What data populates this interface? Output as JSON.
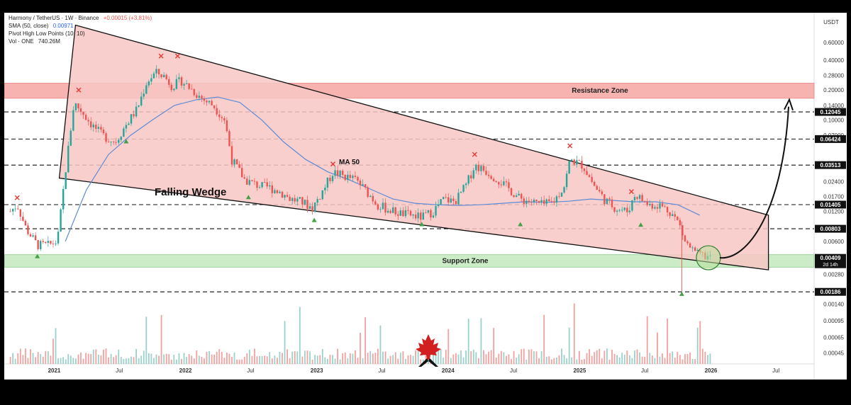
{
  "header": {
    "title": "Harmony / TetherUS · 1W · Binance",
    "change": "+0.00015 (+3.81%)",
    "sma_label": "SMA (50, close)",
    "sma_value": "0.00971",
    "pivot_label": "Pivot High Low Points (10, 10)",
    "vol_label": "Vol · ONE",
    "vol_value": "740.26M"
  },
  "colors": {
    "up": "#26a69a",
    "down": "#ef5350",
    "wedge_fill": "#f7c7c4",
    "resistance_fill": "#f6b3b0",
    "support_fill": "#cbecc6",
    "ma": "#5b8bd6",
    "pivot_high": "#e53935",
    "pivot_low": "#43a047"
  },
  "chart_data": {
    "type": "line",
    "title": "Harmony / TetherUS · 1W · Binance",
    "y_axis_unit": "USDT",
    "y_scale": "log",
    "ylim": [
      0.00035,
      1.2
    ],
    "y_ticks": [
      "1.20000",
      "0.60000",
      "0.40000",
      "0.28000",
      "0.20000",
      "0.14000",
      "0.10000",
      "0.07000",
      "0.03513",
      "0.02400",
      "0.01700",
      "0.01200",
      "0.00803",
      "0.00600",
      "0.00409",
      "0.00280",
      "0.00186",
      "0.00140",
      "0.00095",
      "0.00065",
      "0.00045"
    ],
    "x_ticks": [
      "2021",
      "Jul",
      "2022",
      "Jul",
      "2023",
      "Jul",
      "2024",
      "Jul",
      "2025",
      "Jul",
      "2026",
      "Jul"
    ],
    "xlim": [
      "2020-08-15",
      "2026-10-15"
    ],
    "series": [
      {
        "name": "Harmony / TetherUS",
        "x": [
          "2020-09-01",
          "2020-09-20",
          "2020-10-15",
          "2020-11-15",
          "2020-12-15",
          "2021-01-10",
          "2021-02-01",
          "2021-02-25",
          "2021-03-20",
          "2021-04-15",
          "2021-05-15",
          "2021-06-20",
          "2021-07-20",
          "2021-08-20",
          "2021-09-15",
          "2021-10-10",
          "2021-11-01",
          "2021-11-25",
          "2021-12-20",
          "2022-01-20",
          "2022-02-20",
          "2022-03-20",
          "2022-04-20",
          "2022-05-10",
          "2022-06-15",
          "2022-07-20",
          "2022-08-20",
          "2022-09-20",
          "2022-10-20",
          "2022-11-20",
          "2022-12-20",
          "2023-01-20",
          "2023-02-15",
          "2023-03-20",
          "2023-04-20",
          "2023-05-20",
          "2023-06-20",
          "2023-07-20",
          "2023-08-20",
          "2023-09-20",
          "2023-10-20",
          "2023-11-20",
          "2023-12-20",
          "2024-01-20",
          "2024-02-20",
          "2024-03-15",
          "2024-04-20",
          "2024-05-20",
          "2024-06-20",
          "2024-07-20",
          "2024-08-20",
          "2024-09-20",
          "2024-10-20",
          "2024-11-20",
          "2024-12-05",
          "2025-01-10",
          "2025-02-10",
          "2025-03-10",
          "2025-04-10",
          "2025-05-15",
          "2025-06-05",
          "2025-07-10",
          "2025-08-10",
          "2025-09-10",
          "2025-10-05",
          "2025-10-20",
          "2025-11-20",
          "2025-12-20",
          "2026-01-05"
        ],
        "values": [
          0.012,
          0.014,
          0.008,
          0.0055,
          0.0055,
          0.006,
          0.03,
          0.15,
          0.12,
          0.09,
          0.07,
          0.06,
          0.09,
          0.13,
          0.24,
          0.3,
          0.28,
          0.22,
          0.25,
          0.2,
          0.16,
          0.14,
          0.1,
          0.04,
          0.025,
          0.022,
          0.021,
          0.019,
          0.016,
          0.015,
          0.013,
          0.02,
          0.03,
          0.027,
          0.025,
          0.019,
          0.014,
          0.0125,
          0.0115,
          0.011,
          0.0105,
          0.012,
          0.016,
          0.015,
          0.022,
          0.035,
          0.03,
          0.025,
          0.02,
          0.016,
          0.015,
          0.014,
          0.015,
          0.022,
          0.04,
          0.035,
          0.022,
          0.016,
          0.013,
          0.012,
          0.018,
          0.014,
          0.014,
          0.012,
          0.009,
          0.006,
          0.0045,
          0.0042,
          0.0041
        ]
      },
      {
        "name": "MA 50",
        "x": [
          "2021-02-01",
          "2021-04-01",
          "2021-06-01",
          "2021-08-01",
          "2021-10-01",
          "2021-12-01",
          "2022-02-01",
          "2022-04-01",
          "2022-06-01",
          "2022-08-01",
          "2022-10-01",
          "2022-12-01",
          "2023-02-01",
          "2023-04-01",
          "2023-06-01",
          "2023-08-01",
          "2023-10-01",
          "2023-12-01",
          "2024-02-01",
          "2024-04-01",
          "2024-06-01",
          "2024-08-01",
          "2024-10-01",
          "2024-12-01",
          "2025-02-01",
          "2025-04-01",
          "2025-06-01",
          "2025-08-01",
          "2025-10-01",
          "2025-12-01"
        ],
        "values": [
          0.006,
          0.02,
          0.045,
          0.07,
          0.1,
          0.14,
          0.16,
          0.17,
          0.15,
          0.1,
          0.06,
          0.04,
          0.03,
          0.025,
          0.02,
          0.016,
          0.0145,
          0.014,
          0.0138,
          0.014,
          0.0145,
          0.015,
          0.0148,
          0.0152,
          0.016,
          0.0155,
          0.015,
          0.015,
          0.014,
          0.011
        ]
      }
    ],
    "price_labels": [
      "0.12045",
      "0.06424",
      "0.03513",
      "0.01405",
      "0.00803",
      "0.00409",
      "0.00186"
    ],
    "current_price_timer": "2d 14h",
    "annotations": {
      "resistance": "Resistance Zone",
      "support": "Support Zone",
      "pattern": "Falling Wedge",
      "ma": "MA 50"
    },
    "grid": false
  }
}
